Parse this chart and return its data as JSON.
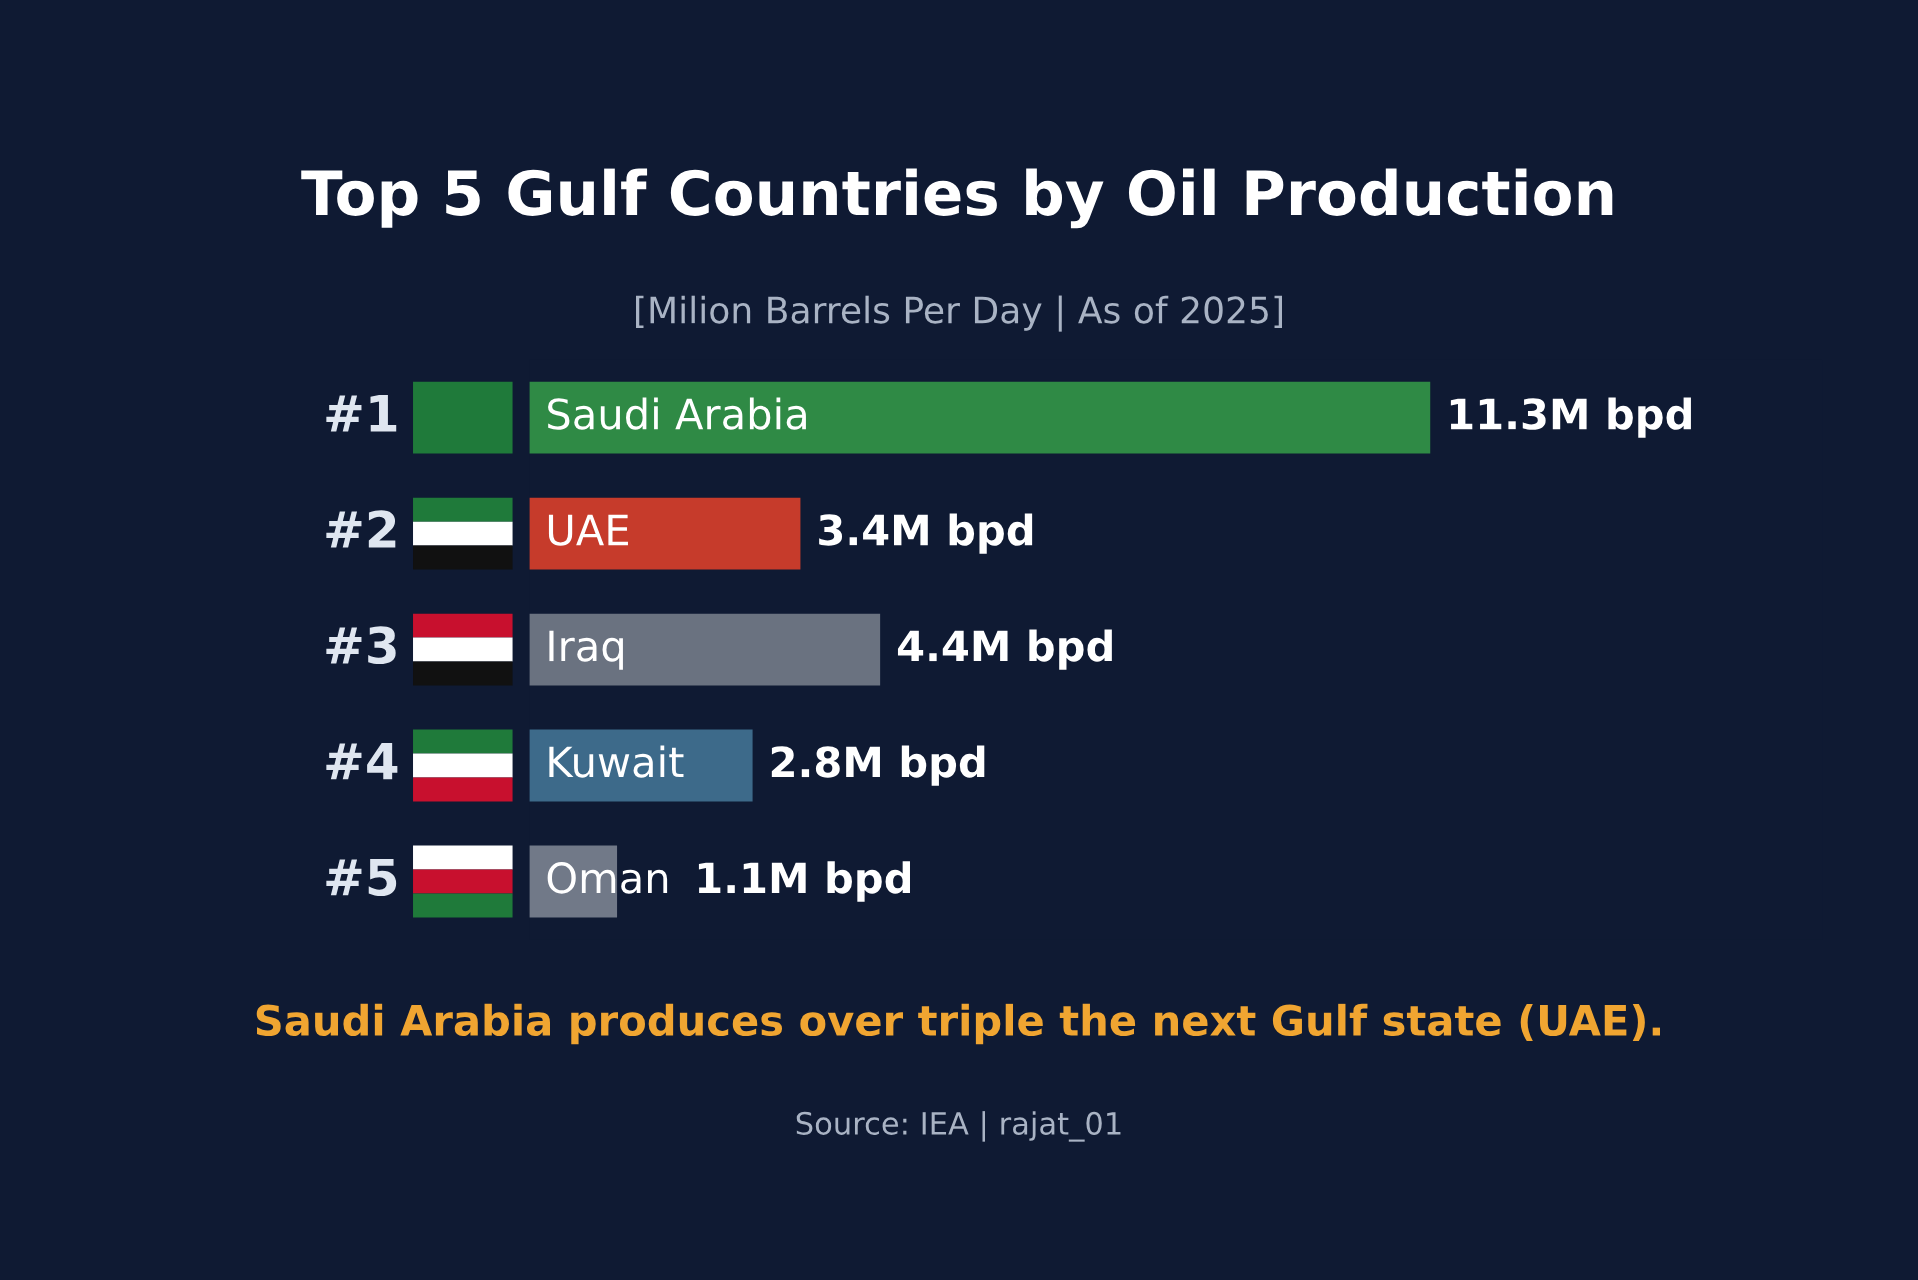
{
  "chart_data": {
    "type": "bar",
    "orientation": "horizontal",
    "title": "Top 5 Gulf Countries by Oil Production",
    "subtitle": "[Milion Barrels Per Day | As of 2025]",
    "categories": [
      "Saudi Arabia",
      "UAE",
      "Iraq",
      "Kuwait",
      "Oman"
    ],
    "values": [
      11.3,
      3.4,
      4.4,
      2.8,
      1.1
    ],
    "colors": [
      "#2f8a45",
      "#c63b2b",
      "#6a7280",
      "#3d6a8a",
      "#717988"
    ],
    "value_labels": [
      "11.3M bpd",
      "3.4M bpd",
      "4.4M bpd",
      "2.8M bpd",
      "1.1M bpd"
    ],
    "annotations": [
      "#1",
      "#2",
      "#3",
      "#4",
      "#5",
      "Saudi Arabia produces over triple the next Gulf state (UAE).",
      "Source: IEA | rajat_01"
    ]
  }
}
